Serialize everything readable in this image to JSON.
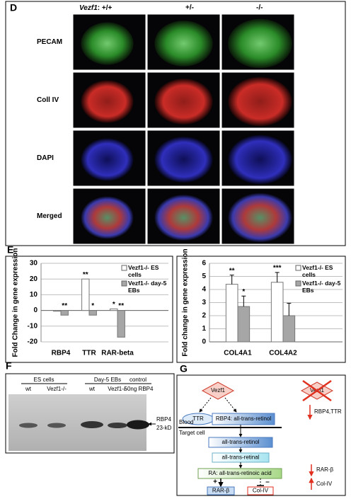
{
  "panel_d": {
    "label": "D",
    "gene": "Vezf1",
    "genotypes": [
      ": +/+",
      "+/-",
      "-/-"
    ],
    "rows": [
      "PECAM",
      "Coll IV",
      "DAPI",
      "Merged"
    ]
  },
  "panel_e_label": "E",
  "chart_data": [
    {
      "type": "bar",
      "y_label": "Fold Change in gene expression",
      "categories": [
        "RBP4",
        "TTR",
        "RAR-beta"
      ],
      "series": [
        {
          "name": "Vezf1-/- ES cells",
          "color": "#ffffff",
          "values": [
            -0.5,
            20,
            1
          ],
          "markers": [
            null,
            "**",
            "*"
          ]
        },
        {
          "name": "Vezf1-/- day-5 EBs",
          "color": "#a6a6a6",
          "values": [
            -3,
            -3,
            -17
          ],
          "markers": [
            "**",
            "*",
            "**"
          ]
        }
      ],
      "ylim": [
        -20,
        30
      ],
      "yticks": [
        -20,
        -10,
        0,
        10,
        20,
        30
      ],
      "grid": true,
      "legend": "upper right"
    },
    {
      "type": "bar",
      "y_label": "Fold change in gene expression",
      "categories": [
        "COL4A1",
        "COL4A2"
      ],
      "series": [
        {
          "name": "Vezf1-/- ES cells",
          "color": "#ffffff",
          "values": [
            4.4,
            4.55
          ],
          "errors": [
            0.7,
            0.75
          ],
          "markers": [
            "**",
            "***"
          ]
        },
        {
          "name": "Vezf1-/- day-5 EBs",
          "color": "#a6a6a6",
          "values": [
            2.7,
            2.0
          ],
          "errors": [
            0.8,
            0.95
          ],
          "markers": [
            "*",
            null
          ]
        }
      ],
      "ylim": [
        0,
        6
      ],
      "yticks": [
        0,
        1,
        2,
        3,
        4,
        5,
        6
      ],
      "grid": true,
      "legend": "upper right"
    }
  ],
  "panel_f": {
    "label": "F",
    "groups": [
      "ES cells",
      "Day-5 EBs",
      "control"
    ],
    "lanes": [
      "wt",
      "Vezf1-/-",
      "wt",
      "Vezf1-/-",
      "50ng RBP4"
    ],
    "band_label": [
      "RBP4",
      "23-kD"
    ]
  },
  "panel_g": {
    "label": "G",
    "vezf1": "Vezf1",
    "vezf1_deleted": "Vezf1",
    "ttr": "TTR",
    "rbp4_complex": "RBP4: all-trans-retinol",
    "blood": "Blood",
    "target_cell": "Target cell",
    "loss_effect": "RBP4,TTR",
    "retinol": "all-trans-retinol",
    "retinal": "all-trans-retinal",
    "retinoic_acid": "RA: all-trans-retinoic acid",
    "activation": "+",
    "repression": "–",
    "rar_beta": "RAR-β",
    "col_iv": "Col-IV",
    "effects": [
      "RAR-β",
      "Col-IV"
    ]
  }
}
